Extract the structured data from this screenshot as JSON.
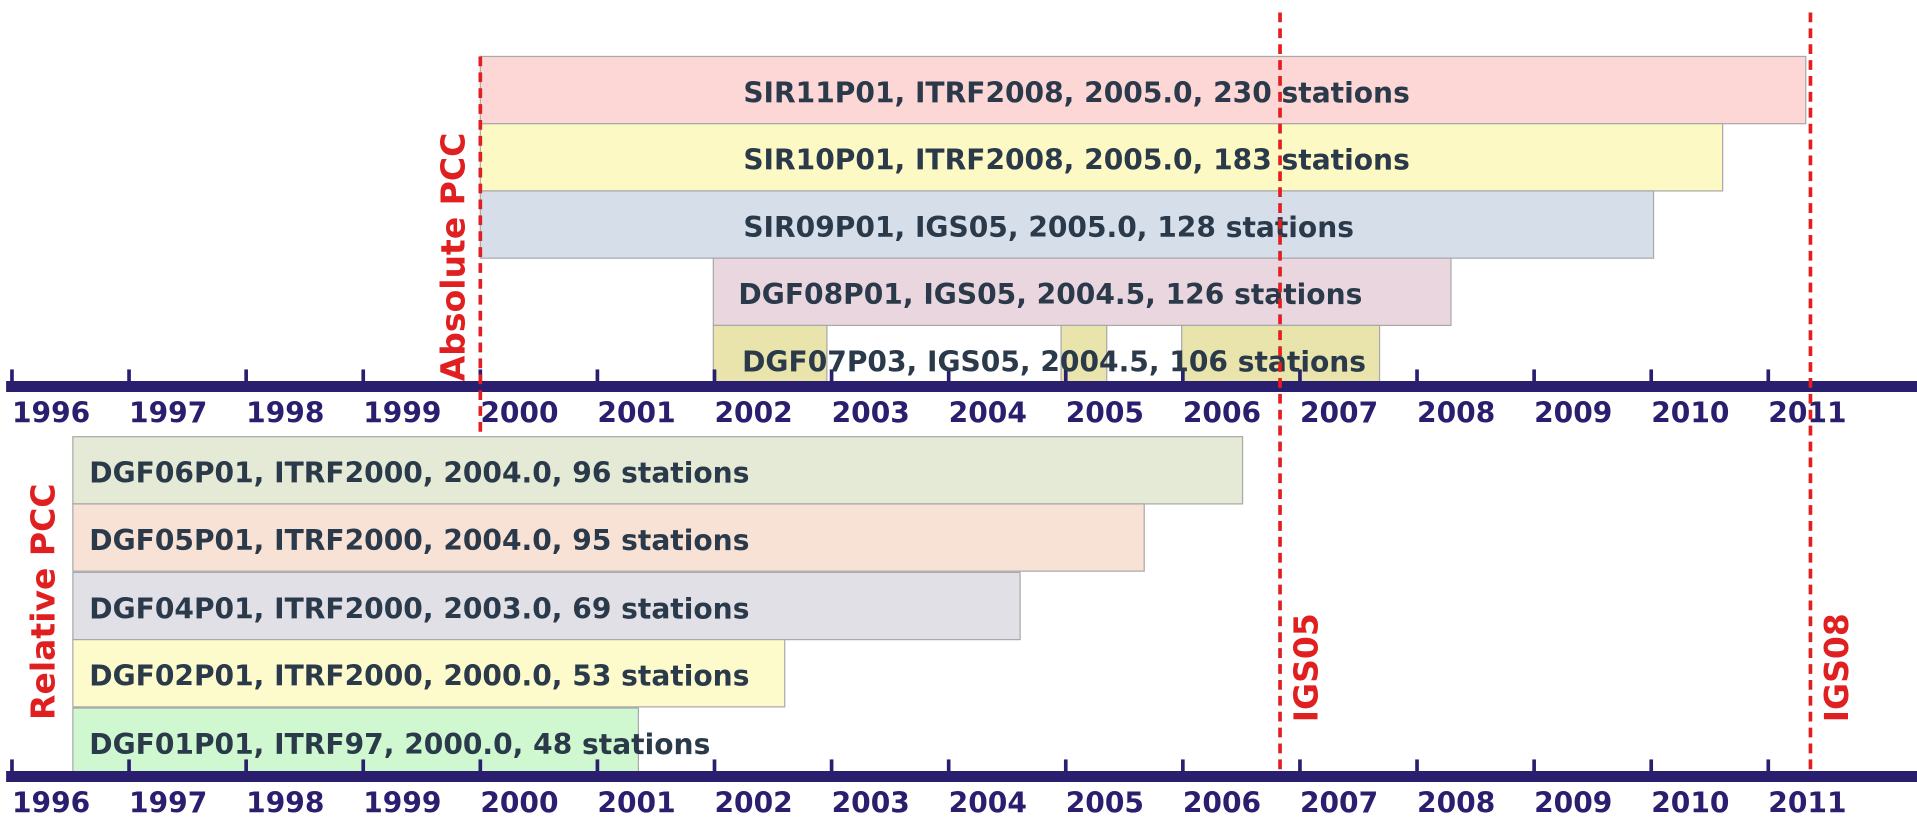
{
  "chart_data": {
    "type": "timeline",
    "xlim": [
      1995.95,
      2012.27
    ],
    "xticks": [
      1996,
      1997,
      1998,
      1999,
      2000,
      2001,
      2002,
      2003,
      2004,
      2005,
      2006,
      2007,
      2008,
      2009,
      2010,
      2011
    ],
    "upper_rows": [
      {
        "label": "SIR11P01, ITRF2008, 2005.0, 230 stations",
        "color": "#fdd6d6",
        "segments": [
          [
            2000.0,
            2011.32
          ]
        ]
      },
      {
        "label": "SIR10P01, ITRF2008, 2005.0, 183 stations",
        "color": "#fdf9c4",
        "segments": [
          [
            2000.0,
            2010.61
          ]
        ]
      },
      {
        "label": "SIR09P01, IGS05, 2005.0, 128 stations",
        "color": "#d6dfe9",
        "segments": [
          [
            2000.0,
            2010.02
          ]
        ]
      },
      {
        "label": "DGF08P01, IGS05, 2004.5, 126 stations",
        "color": "#ead6de",
        "segments": [
          [
            2001.99,
            2008.29
          ]
        ]
      },
      {
        "label": "DGF07P03, IGS05, 2004.5, 106 stations",
        "color": "#e8e4ac",
        "segments": [
          [
            2001.99,
            2002.96
          ],
          [
            2004.96,
            2005.35
          ],
          [
            2005.99,
            2007.68
          ]
        ]
      }
    ],
    "lower_rows": [
      {
        "label": "DGF06P01, ITRF2000, 2004.0, 96 stations",
        "color": "#e4ead6",
        "segments": [
          [
            1996.52,
            2006.51
          ]
        ]
      },
      {
        "label": "DGF05P01, ITRF2000, 2004.0, 95 stations",
        "color": "#f8e2d6",
        "segments": [
          [
            1996.52,
            2005.67
          ]
        ]
      },
      {
        "label": "DGF04P01, ITRF2000, 2003.0, 69 stations",
        "color": "#e0e0e6",
        "segments": [
          [
            1996.52,
            2004.61
          ]
        ]
      },
      {
        "label": "DGF02P01, ITRF2000, 2000.0, 53 stations",
        "color": "#fdfbcc",
        "segments": [
          [
            1996.52,
            2002.6
          ]
        ]
      },
      {
        "label": "DGF01P01, ITRF97, 2000.0, 48 stations",
        "color": "#d0f8d0",
        "segments": [
          [
            1996.52,
            2001.35
          ]
        ]
      }
    ],
    "group_labels": [
      "Absolute PCC",
      "Relative PCC"
    ],
    "markers": [
      {
        "label": "IGS05",
        "value": 2006.83
      },
      {
        "label": "IGS08",
        "value": 2011.36
      }
    ],
    "absolute_line": 2000.0,
    "line_color": "#e02020",
    "axis_color": "#2a1f6e"
  }
}
